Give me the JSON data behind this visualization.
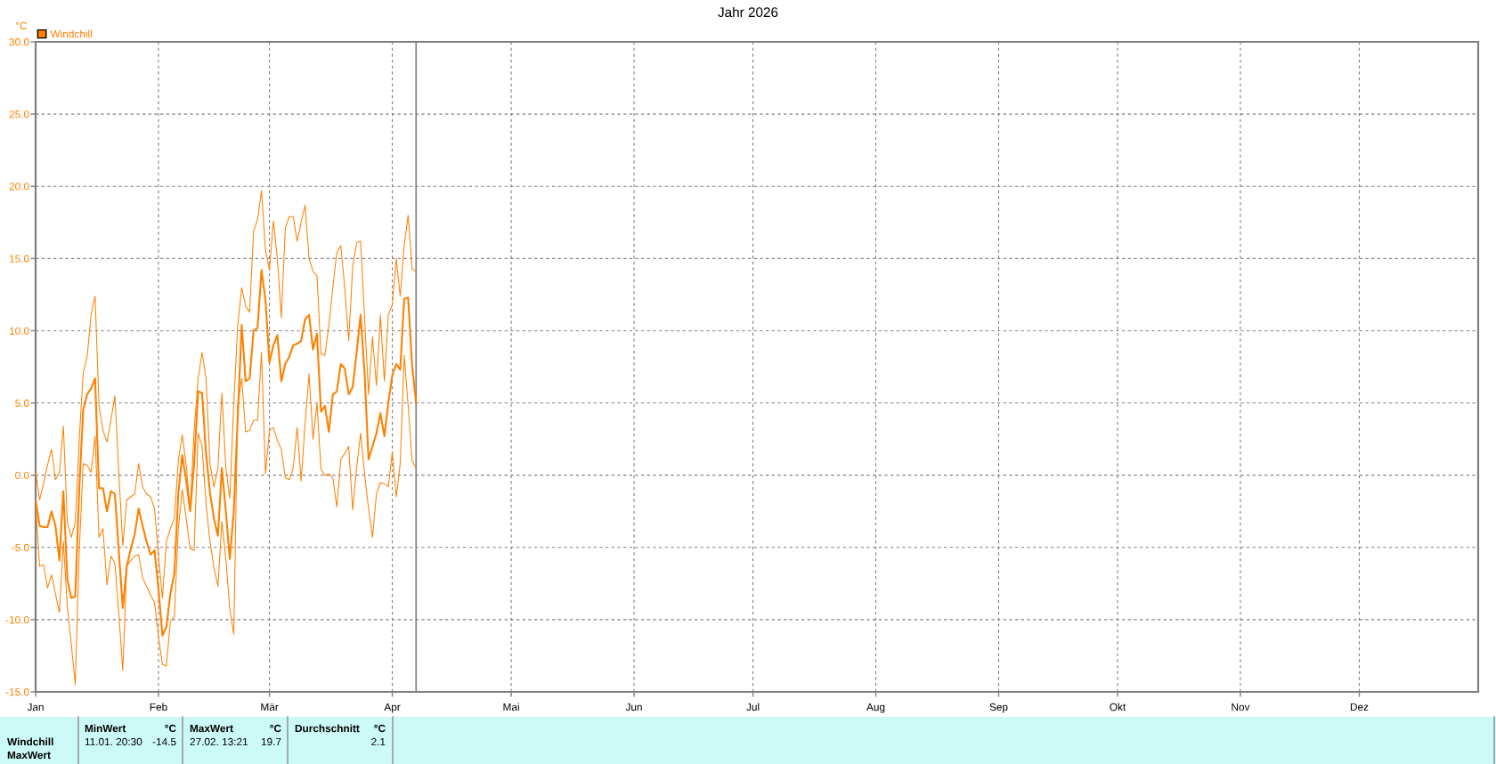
{
  "chart_data": {
    "type": "line",
    "title": "Jahr 2026",
    "ylabel": "°C",
    "x": [
      "2026-01-01",
      "2026-01-02",
      "2026-01-03",
      "2026-01-04",
      "2026-01-05",
      "2026-01-06",
      "2026-01-07",
      "2026-01-08",
      "2026-01-09",
      "2026-01-10",
      "2026-01-11",
      "2026-01-12",
      "2026-01-13",
      "2026-01-14",
      "2026-01-15",
      "2026-01-16",
      "2026-01-17",
      "2026-01-18",
      "2026-01-19",
      "2026-01-20",
      "2026-01-21",
      "2026-01-22",
      "2026-01-23",
      "2026-01-24",
      "2026-01-25",
      "2026-01-26",
      "2026-01-27",
      "2026-01-28",
      "2026-01-29",
      "2026-01-30",
      "2026-01-31",
      "2026-02-01",
      "2026-02-02",
      "2026-02-03",
      "2026-02-04",
      "2026-02-05",
      "2026-02-06",
      "2026-02-07",
      "2026-02-08",
      "2026-02-09",
      "2026-02-10",
      "2026-02-11",
      "2026-02-12",
      "2026-02-13",
      "2026-02-14",
      "2026-02-15",
      "2026-02-16",
      "2026-02-17",
      "2026-02-18",
      "2026-02-19",
      "2026-02-20",
      "2026-02-21",
      "2026-02-22",
      "2026-02-23",
      "2026-02-24",
      "2026-02-25",
      "2026-02-26",
      "2026-02-27",
      "2026-02-28",
      "2026-03-01",
      "2026-03-02",
      "2026-03-03",
      "2026-03-04",
      "2026-03-05",
      "2026-03-06",
      "2026-03-07",
      "2026-03-08",
      "2026-03-09",
      "2026-03-10",
      "2026-03-11",
      "2026-03-12",
      "2026-03-13",
      "2026-03-14",
      "2026-03-15",
      "2026-03-16",
      "2026-03-17",
      "2026-03-18",
      "2026-03-19",
      "2026-03-20",
      "2026-03-21",
      "2026-03-22",
      "2026-03-23",
      "2026-03-24",
      "2026-03-25",
      "2026-03-26",
      "2026-03-27",
      "2026-03-28",
      "2026-03-29",
      "2026-03-30",
      "2026-03-31",
      "2026-04-01",
      "2026-04-02",
      "2026-04-03",
      "2026-04-04",
      "2026-04-05",
      "2026-04-06",
      "2026-04-07"
    ],
    "series": [
      {
        "color": "#ff8000",
        "values": [
          0.3,
          -1.7,
          -0.6,
          0.7,
          1.8,
          -0.3,
          0.2,
          3.4,
          -3.2,
          -4.3,
          -3.3,
          2.4,
          7.1,
          8.2,
          11.1,
          12.4,
          4.8,
          3.1,
          2.3,
          3.8,
          5.5,
          0.1,
          -4.9,
          -1.7,
          -1.5,
          -1.3,
          0.8,
          -0.8,
          -1.3,
          -1.5,
          -2.3,
          -5.6,
          -8.5,
          -4.6,
          -3.7,
          -3.0,
          1.0,
          2.8,
          0.7,
          -2.4,
          3.1,
          6.7,
          8.5,
          6.7,
          0.8,
          -0.8,
          0.5,
          5.7,
          0.5,
          -1.6,
          5.0,
          10.4,
          13.0,
          11.7,
          11.3,
          16.9,
          17.7,
          19.7,
          15.6,
          14.2,
          17.6,
          15.0,
          10.9,
          17.1,
          17.9,
          17.9,
          16.2,
          17.5,
          18.7,
          15.0,
          14.1,
          13.8,
          8.4,
          8.3,
          10.4,
          13.0,
          15.4,
          15.9,
          13.0,
          9.3,
          14.4,
          16.1,
          16.2,
          10.9,
          5.6,
          9.6,
          6.2,
          11.1,
          6.5,
          11.1,
          11.8,
          15.0,
          12.4,
          15.9,
          18.0,
          14.3,
          14.1
        ]
      },
      {
        "color": "#ff8000",
        "values": [
          -2.0,
          -6.3,
          -6.2,
          -7.8,
          -6.9,
          -8.2,
          -9.5,
          -4.6,
          -9.1,
          -11.7,
          -14.5,
          -5.3,
          0.8,
          0.7,
          0.2,
          2.7,
          -4.3,
          -3.7,
          -7.6,
          -5.6,
          -6.1,
          -9.6,
          -13.5,
          -6.3,
          -5.9,
          -5.6,
          -5.5,
          -7.1,
          -7.7,
          -8.3,
          -8.8,
          -11.2,
          -13.1,
          -13.2,
          -10.1,
          -9.8,
          -3.7,
          -1.0,
          -3.0,
          -5.1,
          -5.2,
          2.9,
          2.0,
          -2.0,
          -4.6,
          -6.4,
          -7.7,
          -3.2,
          -5.8,
          -9.3,
          -11.0,
          4.8,
          6.7,
          3.0,
          3.1,
          3.8,
          3.8,
          8.5,
          0.1,
          3.1,
          3.3,
          2.4,
          1.8,
          -0.2,
          -0.3,
          0.5,
          3.3,
          -0.4,
          3.6,
          7.0,
          2.5,
          5.0,
          0.4,
          0.0,
          0.1,
          -0.2,
          -2.2,
          1.1,
          1.5,
          2.0,
          -2.4,
          0.5,
          2.9,
          0.1,
          -2.3,
          -4.3,
          -1.3,
          -0.5,
          -0.6,
          -0.8,
          1.6,
          -1.5,
          0.8,
          8.3,
          4.8,
          1.0,
          0.5
        ]
      },
      {
        "name": "Windchill",
        "color": "#ff8000",
        "values": [
          -1.7,
          -3.5,
          -3.6,
          -3.6,
          -2.5,
          -3.5,
          -5.9,
          -1.1,
          -7.2,
          -8.5,
          -8.4,
          -1.0,
          4.5,
          5.6,
          6.0,
          6.7,
          -0.9,
          -0.9,
          -2.5,
          -1.1,
          -1.3,
          -5.3,
          -9.2,
          -6.3,
          -5.1,
          -4.1,
          -2.3,
          -3.5,
          -4.6,
          -5.5,
          -5.2,
          -7.9,
          -11.1,
          -10.5,
          -8.2,
          -6.8,
          -1.3,
          1.4,
          -0.4,
          -2.5,
          0.8,
          5.8,
          5.7,
          1.5,
          -1.2,
          -3.0,
          -4.2,
          0.5,
          -2.5,
          -5.8,
          -2.5,
          4.0,
          10.4,
          6.5,
          6.7,
          10.0,
          10.2,
          14.2,
          12.1,
          7.8,
          9.0,
          9.7,
          6.5,
          7.7,
          8.2,
          9.0,
          9.1,
          9.3,
          10.8,
          11.1,
          8.7,
          9.8,
          4.4,
          4.8,
          3.0,
          5.6,
          5.8,
          7.7,
          7.4,
          5.6,
          6.1,
          8.5,
          11.1,
          7.1,
          1.1,
          2.0,
          2.9,
          4.3,
          2.7,
          5.0,
          6.9,
          7.7,
          7.3,
          12.2,
          12.3,
          7.6,
          5.0
        ]
      }
    ],
    "xlim": [
      "2026-01-01",
      "2026-12-31"
    ],
    "xticks": [
      {
        "value": "2026-01-01",
        "label": "Jan"
      },
      {
        "value": "2026-02-01",
        "label": "Feb"
      },
      {
        "value": "2026-03-01",
        "label": "Mär"
      },
      {
        "value": "2026-04-01",
        "label": "Apr"
      },
      {
        "value": "2026-05-01",
        "label": "Mai"
      },
      {
        "value": "2026-06-01",
        "label": "Jun"
      },
      {
        "value": "2026-07-01",
        "label": "Jul"
      },
      {
        "value": "2026-08-01",
        "label": "Aug"
      },
      {
        "value": "2026-09-01",
        "label": "Sep"
      },
      {
        "value": "2026-10-01",
        "label": "Okt"
      },
      {
        "value": "2026-11-01",
        "label": "Nov"
      },
      {
        "value": "2026-12-01",
        "label": "Dez"
      }
    ],
    "ylim": [
      -15,
      30
    ],
    "yticks": [
      {
        "value": -15,
        "label": "-15.0"
      },
      {
        "value": -10,
        "label": "-10.0"
      },
      {
        "value": -5,
        "label": "-5.0"
      },
      {
        "value": 0,
        "label": "0.0"
      },
      {
        "value": 5,
        "label": "5.0"
      },
      {
        "value": 10,
        "label": "10.0"
      },
      {
        "value": 15,
        "label": "15.0"
      },
      {
        "value": 20,
        "label": "20.0"
      },
      {
        "value": 25,
        "label": "25.0"
      },
      {
        "value": 30,
        "label": "30.0"
      }
    ],
    "ref_lines": [
      {
        "axis": "x",
        "value": "2026-04-07",
        "color": "#808080",
        "line_style": "solid"
      }
    ],
    "grid": true,
    "legend": "top left",
    "marker": "none",
    "line_style": "solid",
    "annotations": [
      "MinWert",
      "°C",
      "MaxWert",
      "°C",
      "Durchschnitt",
      "°C",
      "Windchill",
      "11.01. 20:30",
      "-14.5",
      "27.02. 13:21",
      "19.7",
      "2.1",
      "MaxWert"
    ]
  }
}
